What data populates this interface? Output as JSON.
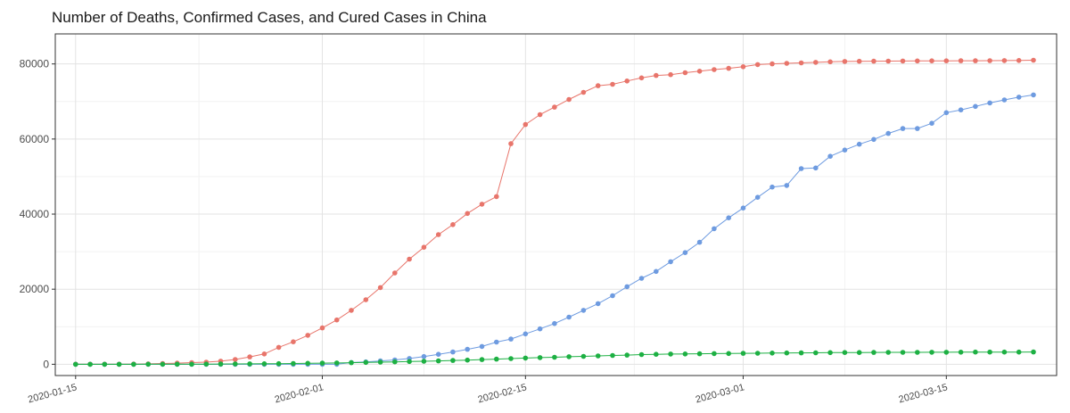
{
  "chart_data": {
    "type": "line",
    "title": "Number of Deaths, Confirmed Cases, and Cured Cases in China",
    "xlabel": "",
    "ylabel": "",
    "x_start": "2020-01-15",
    "x_tick_labels": [
      "2020-01-15",
      "2020-02-01",
      "2020-02-15",
      "2020-03-01",
      "2020-03-15"
    ],
    "x_tick_days": [
      0,
      17,
      31,
      46,
      60
    ],
    "y_tick_labels": [
      "0",
      "20000",
      "40000",
      "60000",
      "80000"
    ],
    "y_tick_values": [
      0,
      20000,
      40000,
      60000,
      80000
    ],
    "ylim": [
      -3000,
      88000
    ],
    "xlim": [
      -1.4,
      67.6
    ],
    "grid": true,
    "legend": "none",
    "series": [
      {
        "name": "confirmed",
        "color": "#E8756B",
        "values": [
          41,
          41,
          41,
          45,
          62,
          121,
          198,
          291,
          440,
          571,
          830,
          1287,
          1975,
          2744,
          4515,
          5974,
          7711,
          9692,
          11791,
          14380,
          17205,
          20438,
          24324,
          28018,
          31161,
          34546,
          37198,
          40171,
          42638,
          44653,
          58761,
          63851,
          66492,
          68500,
          70548,
          72436,
          74185,
          74576,
          75465,
          76288,
          76936,
          77150,
          77658,
          78064,
          78497,
          78824,
          79251,
          79824,
          80026,
          80151,
          80270,
          80409,
          80552,
          80651,
          80695,
          80735,
          80754,
          80778,
          80793,
          80813,
          80824,
          80844,
          80860,
          80881,
          80894,
          80928,
          81000
        ]
      },
      {
        "name": "cured",
        "color": "#6E9BE0",
        "values": [
          0,
          0,
          0,
          0,
          0,
          0,
          0,
          0,
          0,
          0,
          0,
          0,
          0,
          0,
          0,
          0,
          0,
          0,
          0,
          475,
          632,
          892,
          1153,
          1540,
          2050,
          2649,
          3281,
          3996,
          4740,
          5911,
          6723,
          8096,
          9419,
          10844,
          12552,
          14376,
          16155,
          18264,
          20659,
          22888,
          24734,
          27323,
          29745,
          32495,
          36117,
          39002,
          41625,
          44462,
          47204,
          47639,
          52115,
          52300,
          55404,
          57065,
          58600,
          59897,
          61475,
          62793,
          62793,
          64196,
          67017,
          67749,
          68679,
          69614,
          70420,
          71150,
          71740
        ]
      },
      {
        "name": "deaths",
        "color": "#1DB043",
        "values": [
          1,
          1,
          2,
          2,
          3,
          6,
          9,
          17,
          25,
          41,
          56,
          80,
          106,
          132,
          170,
          213,
          259,
          304,
          361,
          425,
          490,
          563,
          636,
          722,
          811,
          908,
          1016,
          1113,
          1259,
          1380,
          1523,
          1665,
          1770,
          1868,
          2004,
          2118,
          2236,
          2345,
          2442,
          2592,
          2663,
          2715,
          2744,
          2788,
          2835,
          2870,
          2912,
          2943,
          2981,
          3012,
          3042,
          3070,
          3097,
          3119,
          3136,
          3158,
          3169,
          3176,
          3189,
          3199,
          3213,
          3226,
          3237,
          3245,
          3248,
          3255,
          3261
        ]
      }
    ]
  }
}
